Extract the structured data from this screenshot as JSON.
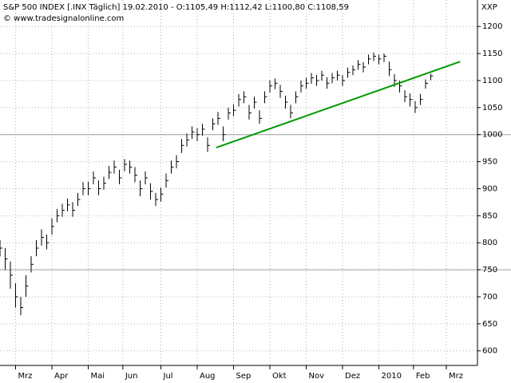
{
  "chart_data": {
    "type": "hlc",
    "title": "S&P 500 INDEX [.INX  Täglich] 19.02.2010 - O:1105,49 H:1112,42 L:1100,80 C:1108,59",
    "subtitle": "© www.tradesignalonline.com",
    "axis_label": "XXP",
    "color": "#000000",
    "x": [
      0,
      3,
      6,
      9,
      12,
      15,
      18,
      21,
      24,
      27,
      30,
      33,
      36,
      39,
      42,
      45,
      48,
      51,
      54,
      57,
      60,
      63,
      66,
      69,
      72,
      75,
      78,
      81,
      84,
      87,
      90,
      93,
      96,
      99,
      102,
      105,
      108,
      111,
      114,
      117,
      120,
      123,
      126,
      129,
      132,
      135,
      138,
      141,
      144,
      147,
      150,
      153,
      156,
      159,
      162,
      165,
      168,
      171,
      174,
      177,
      180,
      183,
      186,
      189,
      192,
      195,
      198,
      201,
      204,
      207,
      210,
      213,
      216,
      219,
      222,
      225,
      228,
      231,
      234,
      237,
      240,
      243,
      246,
      249
    ],
    "close": [
      790,
      770,
      740,
      700,
      680,
      720,
      760,
      790,
      810,
      800,
      830,
      850,
      860,
      870,
      860,
      880,
      900,
      900,
      920,
      900,
      910,
      930,
      940,
      920,
      945,
      940,
      925,
      900,
      920,
      895,
      880,
      890,
      915,
      940,
      950,
      980,
      990,
      1005,
      1000,
      1010,
      980,
      1020,
      1030,
      1000,
      1040,
      1045,
      1065,
      1070,
      1040,
      1060,
      1030,
      1070,
      1090,
      1095,
      1080,
      1060,
      1040,
      1070,
      1090,
      1095,
      1105,
      1100,
      1110,
      1095,
      1105,
      1110,
      1100,
      1115,
      1120,
      1130,
      1125,
      1140,
      1145,
      1140,
      1145,
      1120,
      1100,
      1090,
      1070,
      1065,
      1050,
      1065,
      1095,
      1108.59
    ],
    "high": [
      805,
      790,
      765,
      725,
      700,
      740,
      775,
      805,
      825,
      815,
      845,
      862,
      872,
      882,
      875,
      892,
      912,
      913,
      932,
      915,
      922,
      942,
      952,
      935,
      955,
      952,
      940,
      915,
      932,
      910,
      892,
      902,
      928,
      952,
      962,
      992,
      1002,
      1015,
      1012,
      1020,
      995,
      1030,
      1042,
      1015,
      1050,
      1056,
      1075,
      1080,
      1055,
      1070,
      1045,
      1080,
      1100,
      1104,
      1092,
      1072,
      1055,
      1080,
      1100,
      1105,
      1114,
      1110,
      1118,
      1106,
      1114,
      1118,
      1110,
      1124,
      1128,
      1138,
      1134,
      1148,
      1152,
      1148,
      1150,
      1135,
      1112,
      1100,
      1082,
      1076,
      1062,
      1075,
      1102,
      1112.42
    ],
    "low": [
      775,
      750,
      715,
      680,
      666,
      700,
      745,
      775,
      795,
      788,
      815,
      838,
      848,
      858,
      848,
      868,
      888,
      888,
      908,
      888,
      898,
      918,
      928,
      908,
      932,
      928,
      912,
      886,
      908,
      880,
      868,
      876,
      902,
      928,
      938,
      966,
      978,
      992,
      988,
      998,
      968,
      1008,
      1018,
      988,
      1028,
      1034,
      1052,
      1058,
      1028,
      1048,
      1020,
      1058,
      1078,
      1084,
      1068,
      1048,
      1030,
      1058,
      1078,
      1085,
      1094,
      1090,
      1100,
      1085,
      1095,
      1100,
      1090,
      1105,
      1110,
      1120,
      1115,
      1130,
      1136,
      1130,
      1134,
      1108,
      1088,
      1078,
      1060,
      1052,
      1040,
      1055,
      1085,
      1100.8
    ],
    "xlim": [
      0,
      276
    ],
    "ylim": [
      573,
      1249
    ],
    "xticks": [
      {
        "value": 9,
        "label": "Mrz"
      },
      {
        "value": 30,
        "label": "Apr"
      },
      {
        "value": 51,
        "label": "Mai"
      },
      {
        "value": 71,
        "label": "Jun"
      },
      {
        "value": 93,
        "label": "Jul"
      },
      {
        "value": 114,
        "label": "Aug"
      },
      {
        "value": 135,
        "label": "Sep"
      },
      {
        "value": 156,
        "label": "Okt"
      },
      {
        "value": 177,
        "label": "Nov"
      },
      {
        "value": 198,
        "label": "Dez"
      },
      {
        "value": 219,
        "label": "2010"
      },
      {
        "value": 239,
        "label": "Feb"
      },
      {
        "value": 258,
        "label": "Mrz"
      }
    ],
    "yticks": [
      600,
      650,
      700,
      750,
      800,
      850,
      900,
      950,
      1000,
      1050,
      1100,
      1150,
      1200
    ],
    "hlines": [
      750,
      1000
    ],
    "trendline": {
      "x": [
        125,
        266
      ],
      "y": [
        976,
        1135
      ],
      "color": "#009900"
    },
    "grid": true
  }
}
